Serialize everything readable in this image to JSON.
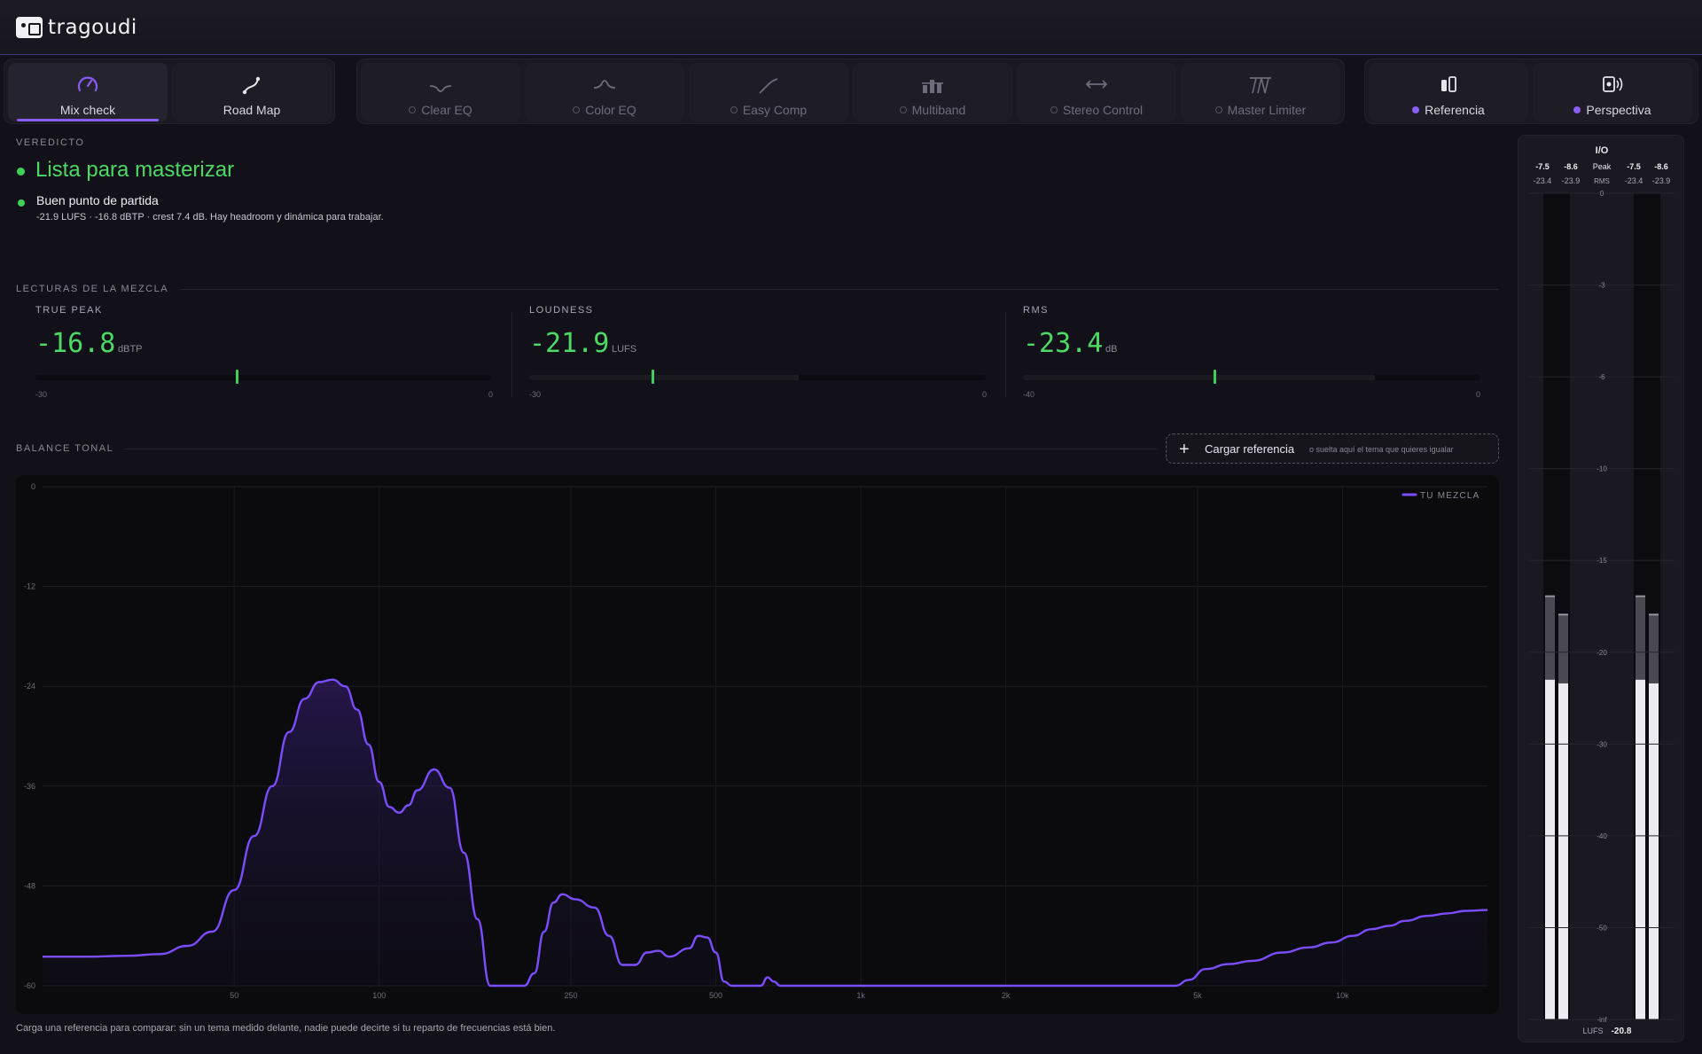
{
  "app": {
    "name": "tragoudi"
  },
  "tabs": {
    "left": [
      {
        "label": "Mix check",
        "icon": "gauge-icon"
      },
      {
        "label": "Road Map",
        "icon": "route-icon"
      }
    ],
    "middle": [
      {
        "label": "Clear EQ",
        "icon": "notch-eq-icon"
      },
      {
        "label": "Color EQ",
        "icon": "bell-eq-icon"
      },
      {
        "label": "Easy Comp",
        "icon": "compressor-curve-icon"
      },
      {
        "label": "Multiband",
        "icon": "multiband-bars-icon"
      },
      {
        "label": "Stereo Control",
        "icon": "stereo-arrows-icon"
      },
      {
        "label": "Master Limiter",
        "icon": "limiter-icon"
      }
    ],
    "right": [
      {
        "label": "Referencia",
        "icon": "reference-icon"
      },
      {
        "label": "Perspectiva",
        "icon": "speaker-icon"
      }
    ]
  },
  "verdict": {
    "section": "VEREDICTO",
    "title": "Lista para masterizar",
    "sub": "Buen punto de partida",
    "detail": "-21.9 LUFS · -16.8 dBTP · crest 7.4 dB. Hay headroom y dinámica para trabajar."
  },
  "readings": {
    "section": "LECTURAS DE LA MEZCLA",
    "items": [
      {
        "label": "TRUE PEAK",
        "value": "-16.8",
        "unit": "dBTP",
        "min": "-30",
        "max": "0",
        "level": 0.44,
        "fill": 0.0
      },
      {
        "label": "LOUDNESS",
        "value": "-21.9",
        "unit": "LUFS",
        "min": "-30",
        "max": "0",
        "level": 0.27,
        "fill": 0.59
      },
      {
        "label": "RMS",
        "value": "-23.4",
        "unit": "dB",
        "min": "-40",
        "max": "0",
        "level": 0.42,
        "fill": 0.77
      }
    ]
  },
  "tonal": {
    "section": "BALANCE TONAL",
    "load_button": "Cargar referencia",
    "load_hint": "o suelta aquí el tema que quieres igualar",
    "legend": "TU MEZCLA",
    "footnote": "Carga una referencia para comparar: sin un tema medido delante, nadie puede decirte si tu reparto de frecuencias está bien."
  },
  "chart_data": {
    "type": "area",
    "xscale": "log",
    "xlim": [
      20,
      20000
    ],
    "ylim": [
      -60,
      0
    ],
    "x_ticks": [
      "50",
      "100",
      "250",
      "500",
      "1k",
      "2k",
      "5k",
      "10k"
    ],
    "x_tick_values": [
      50,
      100,
      250,
      500,
      1000,
      2000,
      5000,
      10000
    ],
    "y_ticks": [
      "0",
      "-12",
      "-24",
      "-36",
      "-48",
      "-60"
    ],
    "y_tick_values": [
      0,
      -12,
      -24,
      -36,
      -48,
      -60
    ],
    "grid": true,
    "legend_position": "top-right",
    "series": [
      {
        "name": "TU MEZCLA",
        "color": "#7c4dff",
        "points": [
          [
            20,
            -56.5
          ],
          [
            25,
            -56.5
          ],
          [
            30,
            -56.4
          ],
          [
            35,
            -56.2
          ],
          [
            40,
            -55.2
          ],
          [
            45,
            -53.5
          ],
          [
            50,
            -48.5
          ],
          [
            55,
            -42
          ],
          [
            60,
            -36
          ],
          [
            65,
            -29.5
          ],
          [
            70,
            -25.5
          ],
          [
            75,
            -23.5
          ],
          [
            80,
            -23.2
          ],
          [
            85,
            -24.0
          ],
          [
            90,
            -26.8
          ],
          [
            95,
            -31.0
          ],
          [
            100,
            -35.5
          ],
          [
            105,
            -38.5
          ],
          [
            110,
            -39.2
          ],
          [
            115,
            -38.3
          ],
          [
            120,
            -36.5
          ],
          [
            130,
            -34.0
          ],
          [
            140,
            -36.2
          ],
          [
            150,
            -44
          ],
          [
            160,
            -52
          ],
          [
            170,
            -60
          ],
          [
            190,
            -60
          ],
          [
            200,
            -60
          ],
          [
            210,
            -58.5
          ],
          [
            220,
            -53.5
          ],
          [
            230,
            -50.0
          ],
          [
            240,
            -49.0
          ],
          [
            255,
            -49.6
          ],
          [
            280,
            -50.6
          ],
          [
            300,
            -54
          ],
          [
            320,
            -57.5
          ],
          [
            340,
            -57.5
          ],
          [
            360,
            -56.0
          ],
          [
            380,
            -55.8
          ],
          [
            400,
            -56.5
          ],
          [
            440,
            -55.5
          ],
          [
            460,
            -54.0
          ],
          [
            480,
            -54.2
          ],
          [
            500,
            -56.0
          ],
          [
            520,
            -59.5
          ],
          [
            540,
            -60
          ],
          [
            580,
            -60
          ],
          [
            600,
            -60
          ],
          [
            620,
            -60
          ],
          [
            640,
            -59.0
          ],
          [
            660,
            -59.5
          ],
          [
            680,
            -60
          ],
          [
            700,
            -60
          ],
          [
            1000,
            -60
          ],
          [
            2000,
            -60
          ],
          [
            3000,
            -60
          ],
          [
            4500,
            -60
          ],
          [
            4800,
            -59.3
          ],
          [
            5200,
            -58.0
          ],
          [
            5800,
            -57.4
          ],
          [
            6500,
            -57.0
          ],
          [
            7500,
            -56.0
          ],
          [
            8500,
            -55.4
          ],
          [
            9500,
            -54.8
          ],
          [
            10500,
            -54.0
          ],
          [
            11500,
            -53.2
          ],
          [
            12500,
            -52.8
          ],
          [
            13500,
            -52.2
          ],
          [
            15000,
            -51.6
          ],
          [
            16500,
            -51.3
          ],
          [
            18000,
            -51.0
          ],
          [
            20000,
            -50.9
          ]
        ]
      }
    ]
  },
  "io": {
    "title": "I/O",
    "peak_label": "Peak",
    "rms_label": "RMS",
    "in_peak": [
      "-7.5",
      "-8.6"
    ],
    "in_rms": [
      "-23.4",
      "-23.9"
    ],
    "out_peak": [
      "-7.5",
      "-8.6"
    ],
    "out_rms": [
      "-23.4",
      "-23.9"
    ],
    "scale": [
      "0",
      "-3",
      "-6",
      "-10",
      "-15",
      "-20",
      "-30",
      "-40",
      "-50",
      "-inf"
    ],
    "lufs_label": "LUFS",
    "lufs_value": "-20.8",
    "meters": [
      {
        "peak_level": -17,
        "rms_level": -23
      },
      {
        "peak_level": -18,
        "rms_level": -23.4
      },
      {
        "peak_level": -17,
        "rms_level": -23
      },
      {
        "peak_level": -18,
        "rms_level": -23.4
      }
    ]
  }
}
